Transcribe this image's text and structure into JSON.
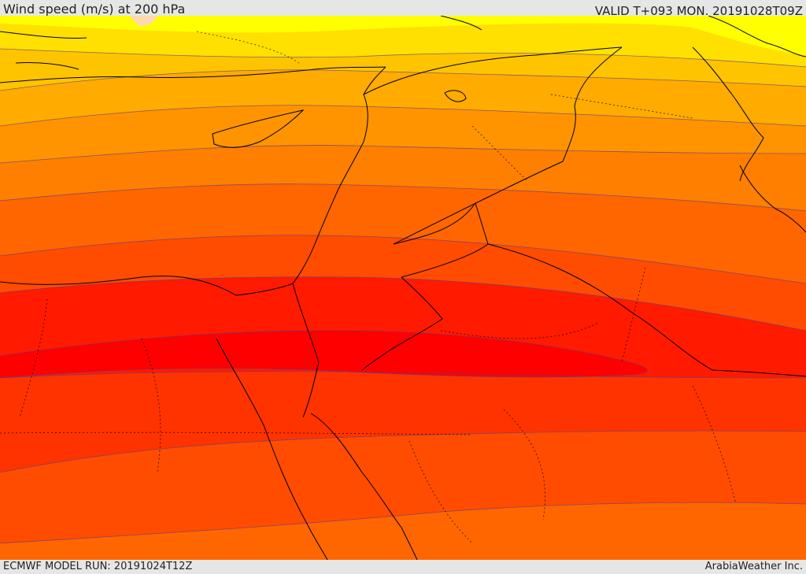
{
  "header": {
    "title": "Wind speed (m/s) at 200 hPa",
    "valid": "VALID T+093 MON. 20191028T09Z"
  },
  "footer": {
    "model_run": "ECMWF MODEL RUN: 20191024T12Z",
    "credit": "ArabiaWeather Inc."
  },
  "map": {
    "colors": {
      "band_1": "#ffff00",
      "band_2": "#ffe000",
      "band_3": "#ffc400",
      "band_4": "#ffab00",
      "band_5": "#ff9400",
      "band_6": "#ff7f00",
      "band_7": "#ff6600",
      "band_8": "#ff4c00",
      "band_9": "#ff3300",
      "band_10": "#ff1a00",
      "band_11": "#ff0000",
      "contour_line": "#5a3c8c",
      "border_line": "#000000",
      "top_patch": "#ffd8b0"
    }
  }
}
